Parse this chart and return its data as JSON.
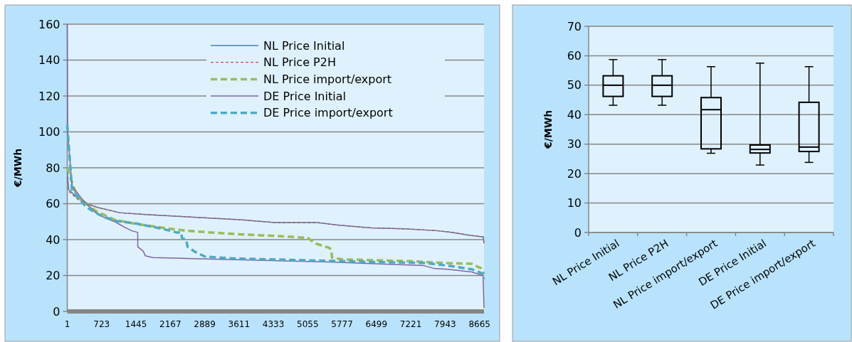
{
  "chart_data": [
    {
      "type": "line",
      "ylabel": "€/MWh",
      "xlim": [
        1,
        8760
      ],
      "xticks": [
        1,
        723,
        1445,
        2167,
        2889,
        3611,
        4333,
        5055,
        5777,
        6499,
        7221,
        7943,
        8665
      ],
      "ylim": [
        0,
        160
      ],
      "yticks": [
        0,
        20,
        40,
        60,
        80,
        100,
        120,
        140,
        160
      ],
      "grid": "y",
      "legend": "top right",
      "series": [
        {
          "name": "NL Price Initial",
          "color": "#4a7ebb",
          "line_style": "solid",
          "x": [
            1,
            30,
            218,
            422,
            626,
            1100,
            1645,
            2325,
            3004,
            3683,
            4362,
            5246,
            5720,
            6400,
            7080,
            7760,
            8100,
            8440,
            8744,
            8760
          ],
          "values": [
            78,
            68,
            63,
            60,
            58,
            55,
            54,
            53,
            52,
            51,
            49.5,
            49.5,
            48,
            46.5,
            46,
            45,
            44,
            42.5,
            41.5,
            38
          ]
        },
        {
          "name": "NL Price P2H",
          "color": "#c0504d",
          "line_style": "dotted",
          "x": [
            1,
            30,
            218,
            422,
            626,
            1100,
            1645,
            2325,
            3004,
            3683,
            4362,
            5246,
            5720,
            6400,
            7080,
            7760,
            8100,
            8440,
            8744,
            8760
          ],
          "values": [
            75,
            67,
            62.5,
            60,
            58,
            55,
            54,
            53,
            52,
            51,
            49.5,
            49.5,
            48,
            46.5,
            46,
            45,
            44,
            42.5,
            41.5,
            38
          ]
        },
        {
          "name": "NL Price import/export",
          "color": "#9bbb59",
          "line_style": "dashed",
          "x": [
            1,
            200,
            600,
            1000,
            1500,
            2167,
            2500,
            3000,
            3600,
            4400,
            5055,
            5200,
            5500,
            5550,
            5565,
            5777,
            6500,
            7221,
            7943,
            8500,
            8700,
            8760
          ],
          "values": [
            80,
            64,
            56,
            51,
            48.5,
            46,
            45,
            44,
            43,
            42,
            41,
            38,
            35.5,
            34.5,
            30,
            29,
            28.5,
            28,
            27,
            26.5,
            24,
            21
          ]
        },
        {
          "name": "DE Price Initial",
          "color": "#8064a2",
          "line_style": "solid",
          "x": [
            1,
            10,
            100,
            300,
            600,
            800,
            1000,
            1200,
            1350,
            1482,
            1483,
            1600,
            1640,
            1800,
            2500,
            4000,
            5500,
            7000,
            7500,
            7700,
            8000,
            8500,
            8740,
            8760
          ],
          "values": [
            160,
            100,
            70,
            63,
            55,
            52,
            50,
            47,
            45,
            44,
            36,
            33.5,
            31,
            30,
            29.5,
            28.5,
            27.5,
            26,
            25.5,
            24,
            23.5,
            22,
            20,
            2
          ]
        },
        {
          "name": "DE Price import/export",
          "color": "#4bacc6",
          "line_style": "dashed",
          "x": [
            1,
            100,
            400,
            700,
            1000,
            1445,
            2000,
            2300,
            2400,
            2410,
            2500,
            2530,
            2700,
            2900,
            3500,
            5000,
            6500,
            7500,
            8000,
            8500,
            8740,
            8760
          ],
          "values": [
            104,
            68,
            58,
            53.5,
            50.5,
            49,
            46,
            44,
            44,
            41,
            40,
            36,
            33,
            30.5,
            29.5,
            28.5,
            27.5,
            27,
            25.5,
            23.5,
            21,
            18
          ]
        }
      ]
    },
    {
      "type": "box",
      "ylabel": "€/MWh",
      "ylim": [
        0,
        70
      ],
      "yticks": [
        0,
        10,
        20,
        30,
        40,
        50,
        60,
        70
      ],
      "grid": "y",
      "categories": [
        "NL Price Initial",
        "NL Price P2H",
        "NL Price import/export",
        "DE Price Initial",
        "DE Price import/export"
      ],
      "boxes": [
        {
          "low": 43.2,
          "q1": 46.2,
          "median": 50,
          "q3": 53.2,
          "high": 58.7
        },
        {
          "low": 43.2,
          "q1": 46.2,
          "median": 50,
          "q3": 53.2,
          "high": 58.7
        },
        {
          "low": 26.9,
          "q1": 28.4,
          "median": 41.7,
          "q3": 45.8,
          "high": 56.3
        },
        {
          "low": 22.9,
          "q1": 27,
          "median": 28.2,
          "q3": 29.7,
          "high": 57.5
        },
        {
          "low": 23.8,
          "q1": 27.5,
          "median": 29,
          "q3": 44.2,
          "high": 56.3
        }
      ]
    }
  ]
}
